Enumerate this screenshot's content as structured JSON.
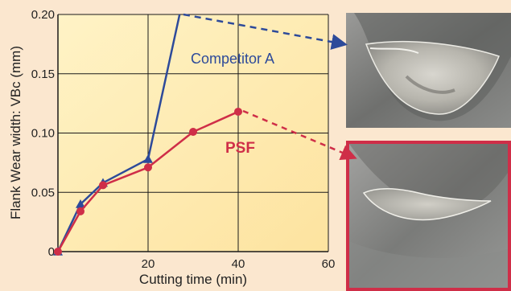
{
  "chart_data": {
    "type": "line",
    "xlabel": "Cutting time (min)",
    "ylabel": "Flank Wear width: VBc (mm)",
    "xlim": [
      0,
      60
    ],
    "ylim": [
      0,
      0.2
    ],
    "x_ticks": [
      "20",
      "40",
      "60"
    ],
    "y_ticks": [
      "0",
      "0.05",
      "0.10",
      "0.15",
      "0.20"
    ],
    "grid": true,
    "series": [
      {
        "name": "Competitor A",
        "color": "#2d4a9a",
        "marker": "triangle",
        "x": [
          0,
          5,
          10,
          20,
          27
        ],
        "y": [
          0,
          0.04,
          0.058,
          0.078,
          0.2
        ]
      },
      {
        "name": "PSF",
        "color": "#cf2e48",
        "marker": "circle",
        "x": [
          0,
          5,
          10,
          20,
          30,
          40
        ],
        "y": [
          0,
          0.034,
          0.056,
          0.071,
          0.101,
          0.118
        ]
      }
    ]
  },
  "images": {
    "top_photo": "competitor-a-wear-photo",
    "bottom_photo": "psf-wear-photo"
  }
}
